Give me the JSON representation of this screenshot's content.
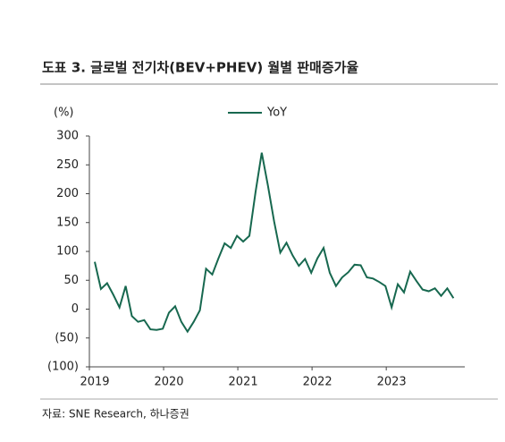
{
  "chart_data": {
    "type": "line",
    "title": "도표 3. 글로벌 전기차(BEV+PHEV) 월별 판매증가율",
    "y_axis_label": "(%)",
    "source": "자료: SNE Research, 하나증권",
    "categories": [
      "2019",
      null,
      null,
      null,
      null,
      null,
      null,
      null,
      null,
      null,
      null,
      null,
      "2020",
      null,
      null,
      null,
      null,
      null,
      null,
      null,
      null,
      null,
      null,
      null,
      "2021",
      null,
      null,
      null,
      null,
      null,
      null,
      null,
      null,
      null,
      null,
      null,
      "2022",
      null,
      null,
      null,
      null,
      null,
      null,
      null,
      null,
      null,
      null,
      null,
      "2023",
      null,
      null,
      null,
      null,
      null,
      null,
      null,
      null,
      null,
      null
    ],
    "series": [
      {
        "name": "YoY",
        "color": "#17684f",
        "values": [
          82,
          35,
          45,
          25,
          3,
          40,
          -12,
          -22,
          -19,
          -35,
          -36,
          -34,
          -6,
          5,
          -22,
          -39,
          -22,
          -2,
          70,
          60,
          88,
          114,
          106,
          127,
          117,
          127,
          203,
          271,
          214,
          152,
          98,
          115,
          93,
          75,
          87,
          63,
          88,
          106,
          63,
          40,
          55,
          64,
          77,
          76,
          55,
          53,
          47,
          40,
          3,
          43,
          29,
          65,
          49,
          34,
          31,
          36,
          23,
          36,
          19
        ]
      }
    ],
    "ylim": [
      -100,
      300
    ],
    "yticks": [
      {
        "value": -100,
        "label": "(100)"
      },
      {
        "value": -50,
        "label": "(50)"
      },
      0,
      50,
      100,
      150,
      200,
      250,
      300
    ],
    "legend": "top"
  }
}
